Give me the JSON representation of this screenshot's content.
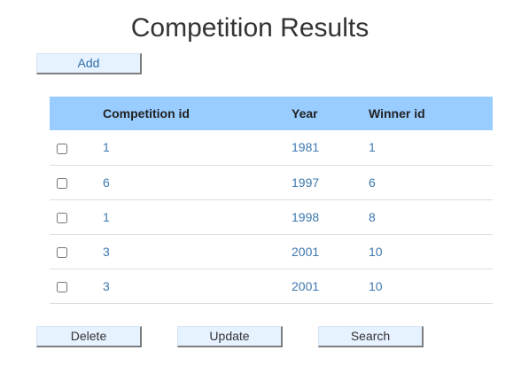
{
  "page": {
    "title": "Competition Results"
  },
  "toolbar": {
    "add_label": "Add"
  },
  "table": {
    "columns": [
      "",
      "Competition id",
      "Year",
      "Winner id"
    ],
    "rows": [
      {
        "checked": false,
        "competition_id": "1",
        "year": "1981",
        "winner_id": "1"
      },
      {
        "checked": false,
        "competition_id": "6",
        "year": "1997",
        "winner_id": "6"
      },
      {
        "checked": false,
        "competition_id": "1",
        "year": "1998",
        "winner_id": "8"
      },
      {
        "checked": false,
        "competition_id": "3",
        "year": "2001",
        "winner_id": "10"
      },
      {
        "checked": false,
        "competition_id": "3",
        "year": "2001",
        "winner_id": "10"
      }
    ]
  },
  "actions": {
    "delete_label": "Delete",
    "update_label": "Update",
    "search_label": "Search"
  },
  "colors": {
    "header_background": "#99ccff",
    "button_background": "#e6f2ff",
    "link_text": "#3d78b0"
  }
}
